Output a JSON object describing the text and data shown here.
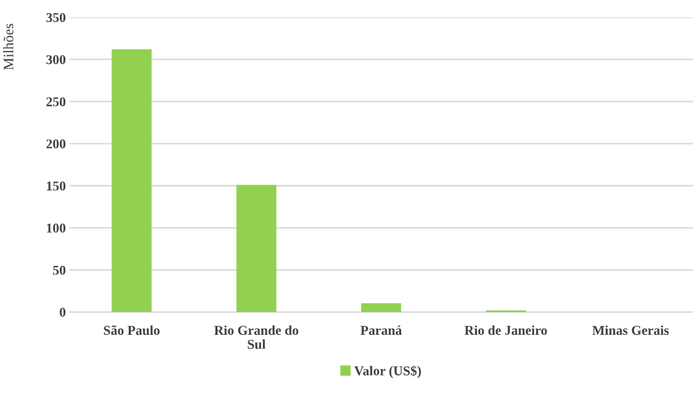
{
  "chart_data": {
    "type": "bar",
    "ylabel": "Milhões",
    "categories": [
      "São Paulo",
      "Rio Grande do\nSul",
      "Paraná",
      "Rio de Janeiro",
      "Minas Gerais"
    ],
    "series": [
      {
        "name": "Valor (US$)",
        "color": "#92d050",
        "values": [
          312,
          151,
          10.5,
          2,
          0
        ]
      }
    ],
    "ylim": [
      0,
      350
    ],
    "yticks": [
      0,
      50,
      100,
      150,
      200,
      250,
      300,
      350
    ],
    "grid": "y",
    "legend": "bottom"
  }
}
